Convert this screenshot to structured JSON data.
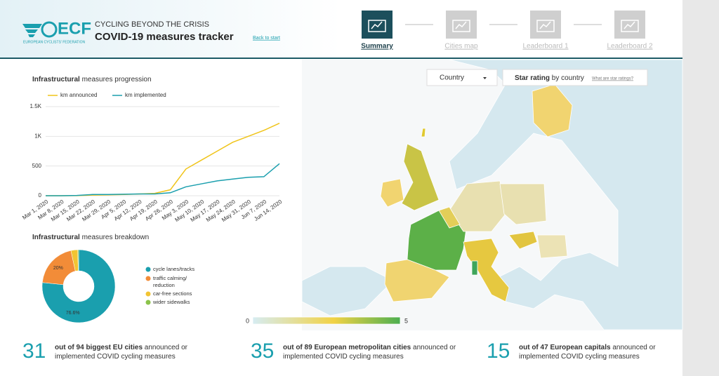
{
  "header": {
    "logo": "ECF",
    "logo_sub": "EUROPEAN CYCLISTS' FEDERATION",
    "kicker": "CYCLING BEYOND THE CRISIS",
    "title": "COVID-19 measures tracker",
    "back": "Back to start"
  },
  "nav": [
    "Summary",
    "Cities map",
    "Leaderboard 1",
    "Leaderboard 2"
  ],
  "chart_data": [
    {
      "type": "line",
      "title_bold": "Infrastructural",
      "title_rest": " measures progression",
      "categories": [
        "Mar 1, 2020",
        "Mar 8, 2020",
        "Mar 15, 2020",
        "Mar 22, 2020",
        "Mar 29, 2020",
        "Apr 5, 2020",
        "Apr 12, 2020",
        "Apr 19, 2020",
        "Apr 26, 2020",
        "May 3, 2020",
        "May 10, 2020",
        "May 17, 2020",
        "May 24, 2020",
        "May 31, 2020",
        "Jun 7, 2020",
        "Jun 14, 2020"
      ],
      "series": [
        {
          "name": "km announced",
          "color": "#f0c419",
          "values": [
            0,
            0,
            2,
            10,
            15,
            20,
            30,
            40,
            100,
            450,
            600,
            750,
            900,
            1000,
            1100,
            1220
          ]
        },
        {
          "name": "km implemented",
          "color": "#1a9fae",
          "values": [
            0,
            0,
            5,
            20,
            20,
            25,
            30,
            30,
            50,
            150,
            200,
            250,
            280,
            310,
            320,
            540
          ]
        }
      ],
      "ylim": [
        0,
        1500
      ],
      "yticks": [
        0,
        500,
        {
          "value": 1000,
          "label": "1K"
        },
        {
          "value": 1500,
          "label": "1.5K"
        }
      ],
      "grid": true,
      "legend": "top"
    },
    {
      "type": "pie",
      "donut": true,
      "title_bold": "Infrastructural",
      "title_rest": " measures breakdown",
      "categories": [
        "cycle lanes/tracks",
        "traffic calming/ reduction",
        "car-free sections",
        "wider sidewalks"
      ],
      "values": [
        76.6,
        20,
        3,
        0.4
      ],
      "value_labels": [
        "76.6%",
        "20%",
        null,
        null
      ],
      "colors": [
        "#1a9fae",
        "#f28c38",
        "#f2c433",
        "#8bc34a"
      ],
      "legend": "right"
    }
  ],
  "map": {
    "dropdown": "Country",
    "title_bold": "Star rating",
    "title_rest": " by country",
    "help": "What are star ratings?",
    "scale_min": "0",
    "scale_max": "5"
  },
  "stats": [
    {
      "number": "31",
      "bold": "out of 94 biggest EU cities",
      "rest": " announced or implemented COVID cycling measures"
    },
    {
      "number": "35",
      "bold": "out of 89 European metropolitan cities",
      "rest": " announced or implemented COVID cycling measures"
    },
    {
      "number": "15",
      "bold": "out of 47 European capitals",
      "rest": " announced or implemented COVID cycling measures"
    }
  ]
}
